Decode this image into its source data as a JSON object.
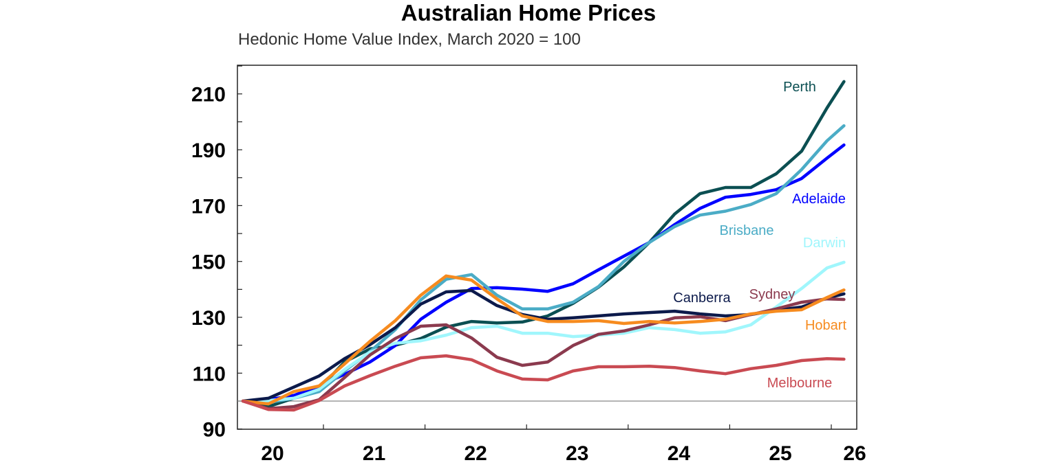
{
  "chart_data": {
    "type": "line",
    "title": "Australian Home Prices",
    "subtitle": "Hedonic Home Value Index, March 2020 = 100",
    "xlabel": "",
    "ylabel": "",
    "ylim": [
      90,
      220
    ],
    "yticks": [
      90,
      110,
      130,
      150,
      170,
      190,
      210
    ],
    "xtick_labels": [
      "20",
      "21",
      "22",
      "23",
      "24",
      "25",
      "26"
    ],
    "xlim": [
      "2020-02",
      "2026-03"
    ],
    "reference_line": 100,
    "grid": false,
    "legend": "inline labels at line ends",
    "x": [
      "2020-03",
      "2020-06",
      "2020-09",
      "2020-12",
      "2021-03",
      "2021-06",
      "2021-09",
      "2021-12",
      "2022-03",
      "2022-06",
      "2022-09",
      "2022-12",
      "2023-03",
      "2023-06",
      "2023-09",
      "2023-12",
      "2024-03",
      "2024-06",
      "2024-09",
      "2024-12",
      "2025-03",
      "2025-06",
      "2025-09",
      "2025-12",
      "2026-02"
    ],
    "series": [
      {
        "name": "Perth",
        "color": "#0b4f52",
        "values": [
          100,
          98,
          101,
          104.4,
          114,
          118.7,
          120,
          122.4,
          126.5,
          128.5,
          128,
          128.3,
          130.5,
          135,
          140.8,
          148,
          156.8,
          167,
          174.3,
          176.5,
          176.5,
          181.4,
          189.5,
          205,
          214.4
        ]
      },
      {
        "name": "Adelaide",
        "color": "#0000ff",
        "values": [
          100,
          100.5,
          102,
          105.4,
          109.6,
          114,
          119.9,
          129.3,
          135.4,
          140.3,
          140.6,
          140.1,
          139.3,
          142,
          147,
          151.9,
          156.8,
          163.2,
          169,
          173,
          174,
          175.7,
          179.7,
          187,
          191.7
        ]
      },
      {
        "name": "Brisbane",
        "color": "#4bacc6",
        "values": [
          100,
          99.5,
          101,
          103.4,
          110.8,
          117.7,
          125.6,
          136.2,
          143.6,
          145.3,
          137.9,
          133,
          133,
          135.4,
          141,
          150,
          156.8,
          162.5,
          166.6,
          168,
          170.4,
          174.3,
          182.9,
          193.2,
          198.6
        ]
      },
      {
        "name": "Darwin",
        "color": "#a0f6fc",
        "values": [
          100,
          100.2,
          101,
          104.2,
          111.3,
          117.5,
          120.7,
          121.6,
          123.6,
          126.3,
          126.8,
          124.3,
          124.3,
          123.1,
          123.6,
          124.3,
          126.3,
          125.6,
          124.3,
          124.8,
          127.3,
          133.7,
          140.3,
          147.7,
          149.7
        ]
      },
      {
        "name": "Canberra",
        "color": "#0c1a4b",
        "values": [
          100,
          101,
          105,
          109,
          115.2,
          120.2,
          126.3,
          134.7,
          139.1,
          139.6,
          134.2,
          131,
          129.3,
          129.8,
          130.5,
          131.2,
          131.7,
          132.2,
          131.2,
          130.5,
          131,
          132.5,
          133.7,
          136.9,
          138.4
        ]
      },
      {
        "name": "Sydney",
        "color": "#8b3a4e",
        "values": [
          100,
          97.3,
          98,
          100.5,
          108.4,
          116.5,
          122.4,
          126.8,
          127.3,
          122.6,
          115.7,
          112.8,
          114,
          119.9,
          123.9,
          125.1,
          127.3,
          129.8,
          130.2,
          128.8,
          131,
          133,
          135.4,
          136.6,
          136.4
        ]
      },
      {
        "name": "Hobart",
        "color": "#f68b1f",
        "values": [
          100,
          99,
          103.4,
          105.4,
          113.3,
          121.4,
          128.8,
          137.9,
          144.8,
          143.3,
          136.6,
          130.5,
          128.5,
          128.5,
          128.8,
          127.8,
          128.5,
          128,
          128.5,
          129.3,
          131.2,
          132.2,
          132.7,
          137.1,
          139.8
        ]
      },
      {
        "name": "Melbourne",
        "color": "#c94a52",
        "values": [
          100,
          97,
          96.8,
          100.2,
          105.4,
          109.1,
          112.5,
          115.5,
          116.2,
          114.8,
          110.8,
          107.9,
          107.6,
          110.8,
          112.3,
          112.3,
          112.5,
          112,
          110.8,
          109.8,
          111.6,
          112.8,
          114.5,
          115.2,
          115
        ]
      }
    ]
  }
}
